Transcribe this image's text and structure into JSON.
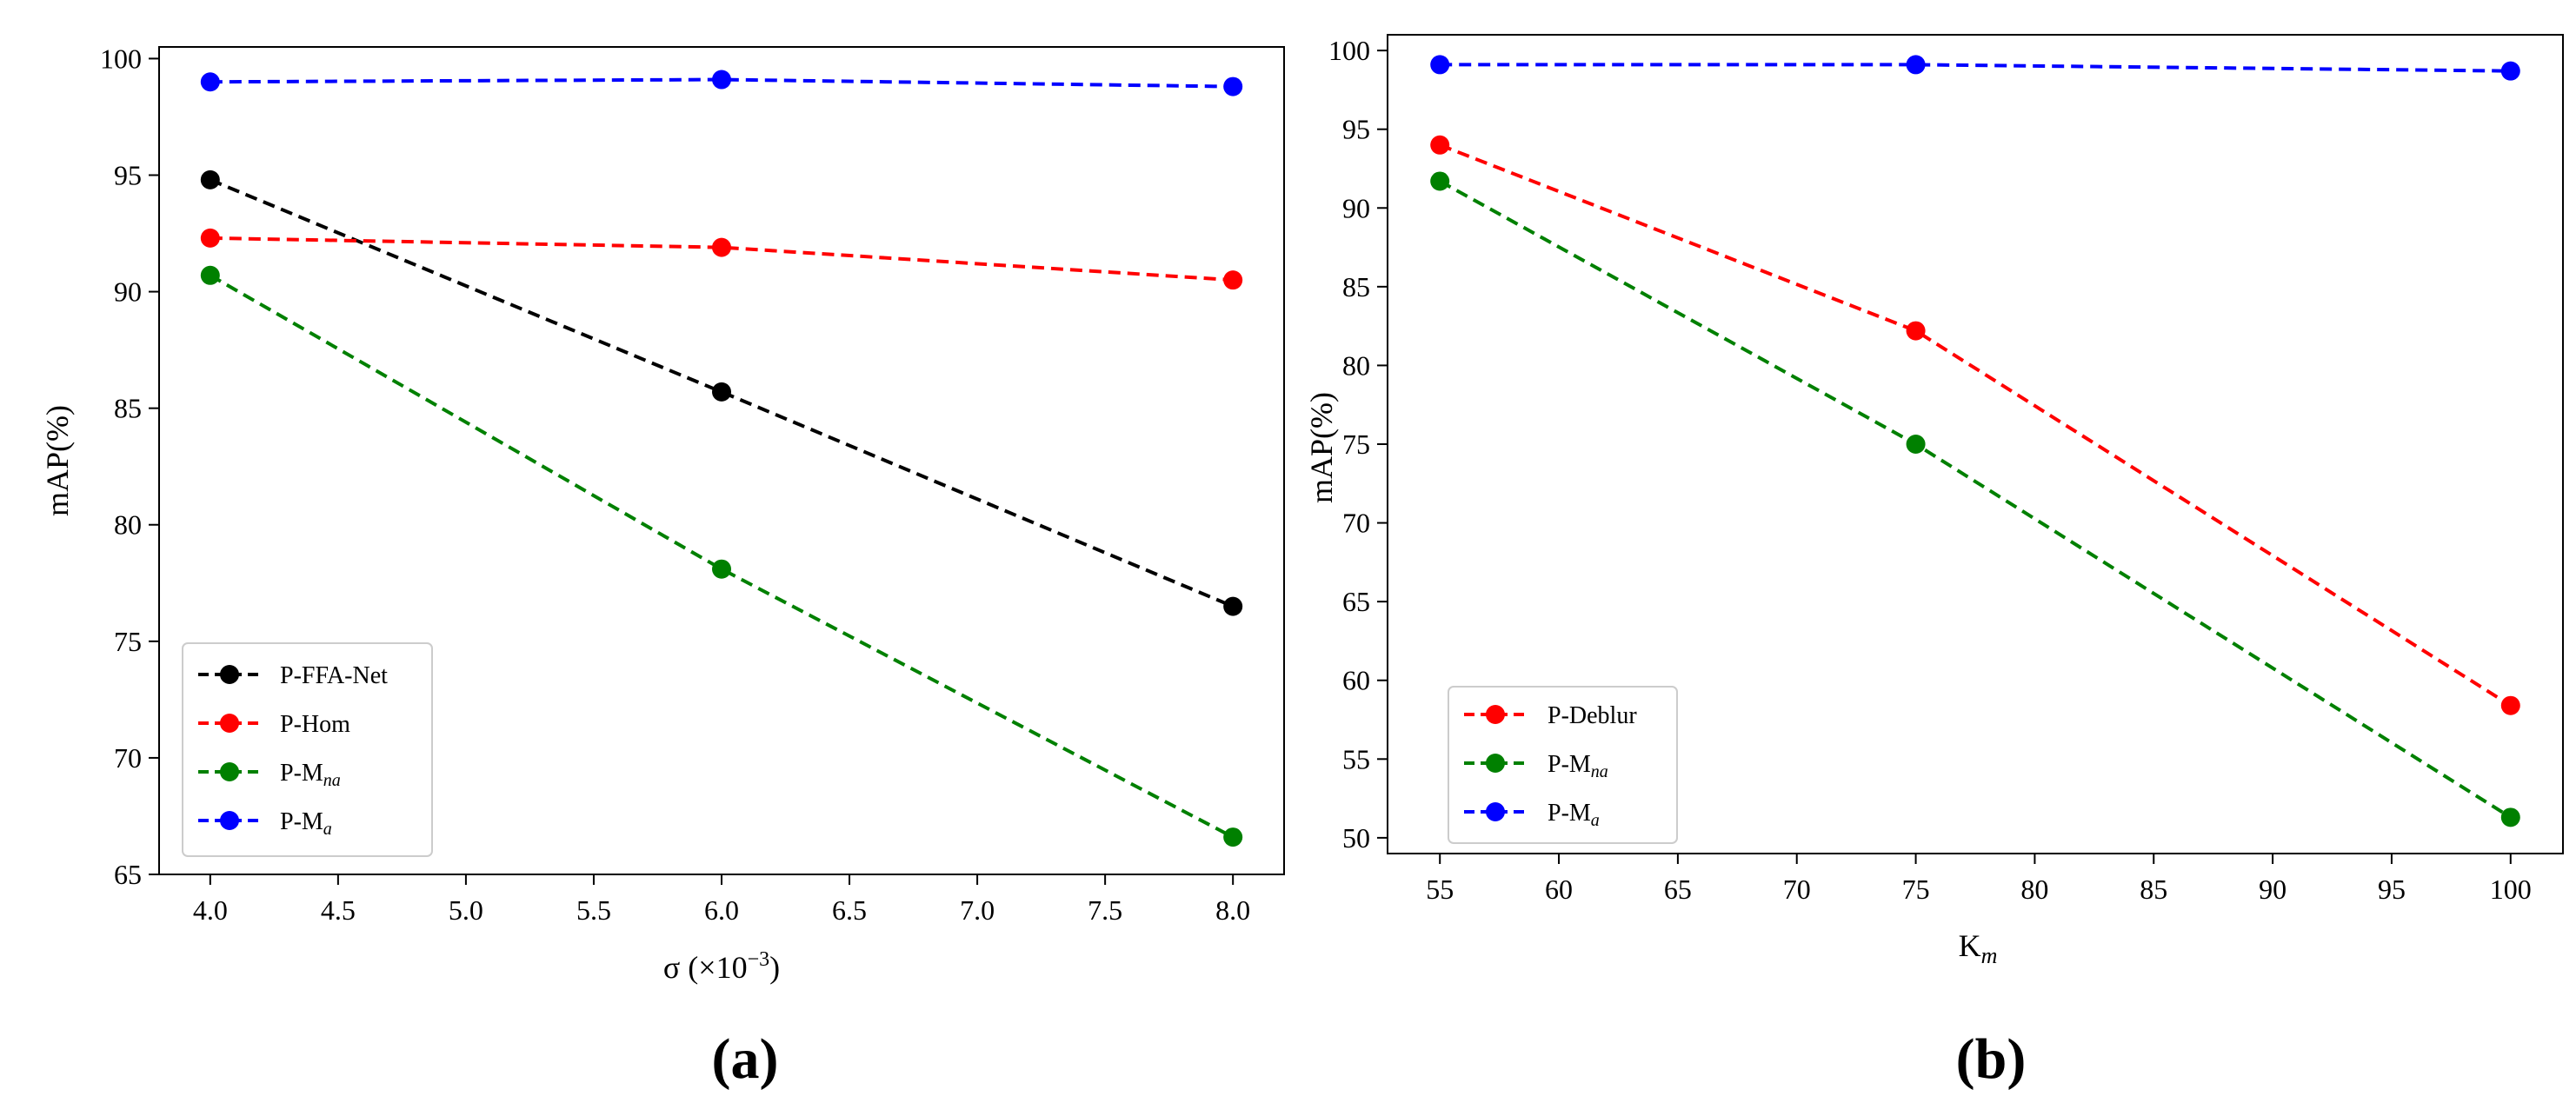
{
  "chart_data": [
    {
      "id": "a",
      "type": "line",
      "caption": "(a)",
      "xlabel": "σ (×10",
      "xlabel_sup": "−3",
      "xlabel_tail": ")",
      "ylabel": "mAP(%)",
      "x": [
        4.0,
        6.0,
        8.0
      ],
      "xlim": [
        3.8,
        8.2
      ],
      "ylim": [
        65,
        100.5
      ],
      "xticks": [
        "4.0",
        "4.5",
        "5.0",
        "5.5",
        "6.0",
        "6.5",
        "7.0",
        "7.5",
        "8.0"
      ],
      "yticks": [
        "65",
        "70",
        "75",
        "80",
        "85",
        "90",
        "95",
        "100"
      ],
      "legend_position": "lower-left",
      "series": [
        {
          "name": "P-FFA-Net",
          "base": "P-FFA-Net",
          "sub": "",
          "color": "#000000",
          "values": [
            94.8,
            85.7,
            76.5
          ]
        },
        {
          "name": "P-Hom",
          "base": "P-Hom",
          "sub": "",
          "color": "#ff0000",
          "values": [
            92.3,
            91.9,
            90.5
          ]
        },
        {
          "name": "P-Mna",
          "base": "P-M",
          "sub": "na",
          "color": "#008000",
          "values": [
            90.7,
            78.1,
            66.6
          ]
        },
        {
          "name": "P-Ma",
          "base": "P-M",
          "sub": "a",
          "color": "#0000ff",
          "values": [
            99.0,
            99.1,
            98.8
          ]
        }
      ]
    },
    {
      "id": "b",
      "type": "line",
      "caption": "(b)",
      "xlabel": "K",
      "xlabel_sub": "m",
      "ylabel": "mAP(%)",
      "x": [
        55,
        75,
        100
      ],
      "xlim": [
        52.8,
        102.2
      ],
      "ylim": [
        49,
        101
      ],
      "xticks": [
        "55",
        "60",
        "65",
        "70",
        "75",
        "80",
        "85",
        "90",
        "95",
        "100"
      ],
      "yticks": [
        "50",
        "55",
        "60",
        "65",
        "70",
        "75",
        "80",
        "85",
        "90",
        "95",
        "100"
      ],
      "legend_position": "lower-left",
      "series": [
        {
          "name": "P-Deblur",
          "base": "P-Deblur",
          "sub": "",
          "color": "#ff0000",
          "values": [
            94.0,
            82.2,
            58.4
          ]
        },
        {
          "name": "P-Mna",
          "base": "P-M",
          "sub": "na",
          "color": "#008000",
          "values": [
            91.7,
            75.0,
            51.3
          ]
        },
        {
          "name": "P-Ma",
          "base": "P-M",
          "sub": "a",
          "color": "#0000ff",
          "values": [
            99.1,
            99.1,
            98.7
          ]
        }
      ]
    }
  ]
}
